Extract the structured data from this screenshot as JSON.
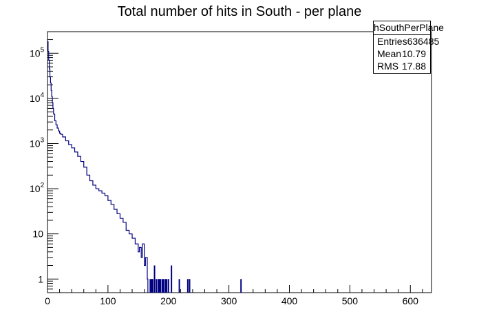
{
  "title": "Total number of hits in South - per plane",
  "stats": {
    "name": "hSouthPerPlane",
    "entries_label": "Entries",
    "entries_value": "636485",
    "mean_label": "Mean",
    "mean_value": "10.79",
    "rms_label": "RMS",
    "rms_value": "17.88"
  },
  "colors": {
    "line": "#000080",
    "axis": "#000000",
    "background": "#ffffff"
  },
  "chart_data": {
    "type": "line",
    "title": "Total number of hits in South - per plane",
    "xlabel": "",
    "ylabel": "",
    "xlim": [
      0,
      635
    ],
    "ylim": [
      0.5,
      300000
    ],
    "yscale": "log",
    "grid": false,
    "legend": "none",
    "x_ticks": [
      0,
      100,
      200,
      300,
      400,
      500,
      600
    ],
    "x_tick_labels": [
      "0",
      "100",
      "200",
      "300",
      "400",
      "500",
      "600"
    ],
    "y_ticks": [
      1,
      10,
      100,
      1000,
      10000,
      100000
    ],
    "y_tick_labels": [
      "1",
      "10",
      "10^2",
      "10^3",
      "10^4",
      "10^5"
    ],
    "series": [
      {
        "x": [
          0,
          1,
          2,
          3,
          4,
          5,
          6,
          7,
          8,
          9,
          10,
          12,
          14,
          16,
          18,
          20,
          22,
          25,
          30,
          35,
          40,
          45,
          50,
          55,
          60,
          65,
          70,
          75,
          80,
          85,
          90,
          95,
          100,
          105,
          110,
          115,
          120,
          125,
          130,
          135,
          140,
          145,
          150,
          152,
          155,
          157,
          160,
          162,
          165
        ],
        "y": [
          180000,
          110000,
          70000,
          45000,
          30000,
          22000,
          15000,
          11000,
          8000,
          6000,
          4500,
          3200,
          2600,
          2200,
          1900,
          1700,
          1600,
          1400,
          1150,
          950,
          800,
          650,
          520,
          400,
          300,
          200,
          150,
          120,
          100,
          90,
          80,
          70,
          55,
          45,
          35,
          28,
          22,
          18,
          12,
          10,
          8,
          6,
          4,
          5,
          3,
          6,
          2,
          3,
          1
        ]
      }
    ],
    "spikes": {
      "x": [
        170,
        172,
        174,
        177,
        180,
        183,
        185,
        187,
        190,
        192,
        195,
        197,
        200,
        205,
        218,
        232,
        235,
        320
      ],
      "y": [
        1,
        1,
        1,
        2,
        1,
        1,
        1,
        1,
        1,
        1,
        1,
        1,
        1,
        2,
        1,
        1,
        1,
        1
      ]
    }
  }
}
